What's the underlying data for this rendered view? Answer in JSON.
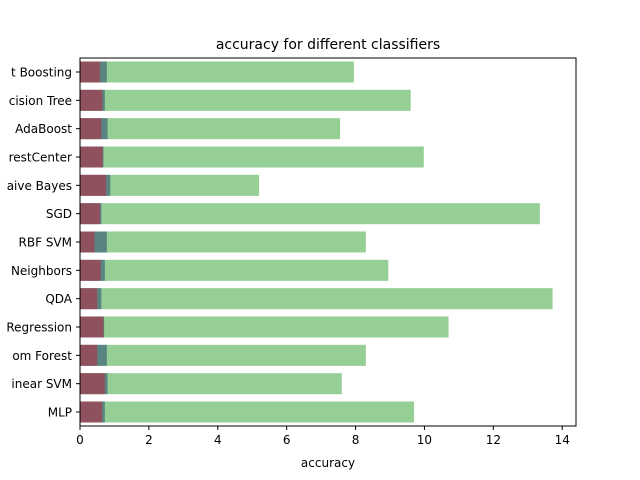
{
  "chart_data": {
    "type": "bar",
    "orientation": "horizontal",
    "title": "accuracy for different classifiers",
    "xlabel": "accuracy",
    "ylabel": "",
    "xlim": [
      0,
      14.4
    ],
    "xticks": [
      0,
      2,
      4,
      6,
      8,
      10,
      12,
      14
    ],
    "grid": false,
    "legend": "none",
    "categories": [
      "t Boosting",
      "cision Tree",
      "AdaBoost",
      "restCenter",
      "aive Bayes",
      "SGD",
      "RBF SVM",
      "Neighbors",
      "QDA",
      "Regression",
      "om Forest",
      "inear SVM",
      "MLP"
    ],
    "series": [
      {
        "color": "#2ca02c",
        "opacity": 0.5,
        "values": [
          7.95,
          9.6,
          7.55,
          9.98,
          5.2,
          13.35,
          8.3,
          8.95,
          13.72,
          10.7,
          8.3,
          7.6,
          9.7
        ]
      },
      {
        "color": "#1f3a6e",
        "opacity": 0.5,
        "values": [
          0.78,
          0.72,
          0.8,
          0.68,
          0.88,
          0.62,
          0.78,
          0.72,
          0.62,
          0.7,
          0.78,
          0.8,
          0.72
        ]
      },
      {
        "color": "#c41e3a",
        "opacity": 0.5,
        "values": [
          0.58,
          0.65,
          0.62,
          0.66,
          0.76,
          0.58,
          0.42,
          0.6,
          0.5,
          0.68,
          0.5,
          0.72,
          0.64
        ]
      }
    ]
  }
}
